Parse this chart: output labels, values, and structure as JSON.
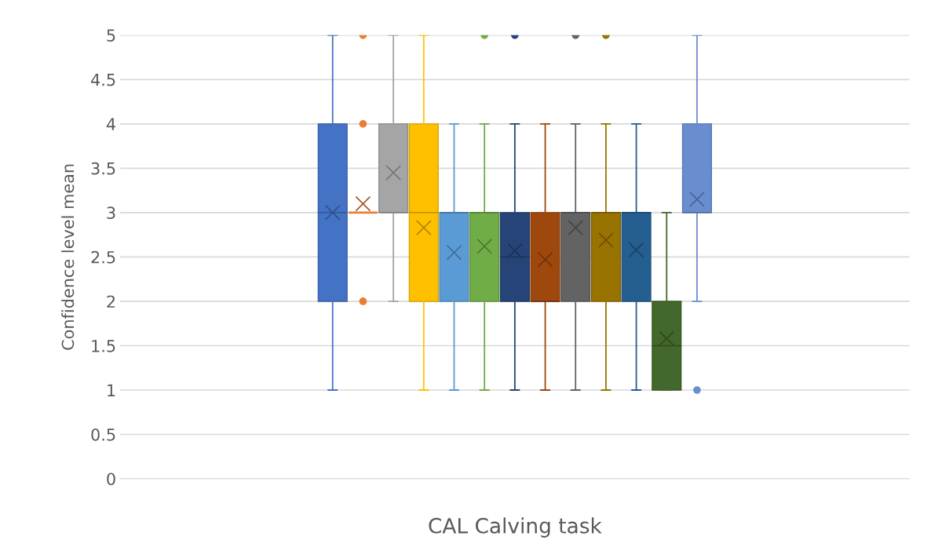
{
  "chart_data": {
    "type": "box",
    "xlabel": "CAL Calving task",
    "ylabel": "Confidence level mean",
    "categories": [
      null
    ],
    "ylim": [
      0,
      5
    ],
    "yticks": [
      0,
      0.5,
      1,
      1.5,
      2,
      2.5,
      3,
      3.5,
      4,
      4.5,
      5
    ],
    "grid": "y",
    "legend": false,
    "series": [
      {
        "color": "#4472c4",
        "boxes": [
          {
            "low": 1,
            "q1": 2,
            "median": 3,
            "q3": 4,
            "high": 5,
            "mean": 3.0
          }
        ]
      },
      {
        "color": "#ed7d31",
        "boxes": [
          {
            "low": 3,
            "q1": 3,
            "median": 3,
            "q3": 3,
            "high": 3,
            "mean": 3.1,
            "outliers": [
              5,
              4,
              2
            ]
          }
        ]
      },
      {
        "color": "#a5a5a5",
        "boxes": [
          {
            "low": 2,
            "q1": 3,
            "median": 3,
            "q3": 4,
            "high": 5,
            "mean": 3.45
          }
        ]
      },
      {
        "color": "#ffc000",
        "boxes": [
          {
            "low": 1,
            "q1": 2,
            "median": 3,
            "q3": 4,
            "high": 5,
            "mean": 2.83
          }
        ]
      },
      {
        "color": "#5b9bd5",
        "boxes": [
          {
            "low": 1,
            "q1": 2,
            "median": 3,
            "q3": 3,
            "high": 4,
            "mean": 2.55
          }
        ]
      },
      {
        "color": "#70ad47",
        "boxes": [
          {
            "low": 1,
            "q1": 2,
            "median": 3,
            "q3": 3,
            "high": 4,
            "mean": 2.62,
            "outliers": [
              5
            ]
          }
        ]
      },
      {
        "color": "#264478",
        "boxes": [
          {
            "low": 1,
            "q1": 2,
            "median": 2.5,
            "q3": 3,
            "high": 4,
            "mean": 2.57,
            "outliers": [
              5
            ]
          }
        ]
      },
      {
        "color": "#9e480e",
        "boxes": [
          {
            "low": 1,
            "q1": 2,
            "median": 2,
            "q3": 3,
            "high": 4,
            "mean": 2.47
          }
        ]
      },
      {
        "color": "#636363",
        "boxes": [
          {
            "low": 1,
            "q1": 2,
            "median": 3,
            "q3": 3,
            "high": 4,
            "mean": 2.83,
            "outliers": [
              5
            ]
          }
        ]
      },
      {
        "color": "#997300",
        "boxes": [
          {
            "low": 1,
            "q1": 2,
            "median": 3,
            "q3": 3,
            "high": 4,
            "mean": 2.69,
            "outliers": [
              5
            ]
          }
        ]
      },
      {
        "color": "#255e91",
        "boxes": [
          {
            "low": 1,
            "q1": 2,
            "median": 3,
            "q3": 3,
            "high": 4,
            "mean": 2.58
          }
        ]
      },
      {
        "color": "#43682b",
        "boxes": [
          {
            "low": 1,
            "q1": 1,
            "median": 1.5,
            "q3": 2,
            "high": 3,
            "mean": 1.58
          }
        ]
      },
      {
        "color": "#698ed0",
        "boxes": [
          {
            "low": 2,
            "q1": 3,
            "median": 3,
            "q3": 4,
            "high": 5,
            "mean": 3.15,
            "outliers": [
              1
            ]
          }
        ]
      }
    ]
  }
}
